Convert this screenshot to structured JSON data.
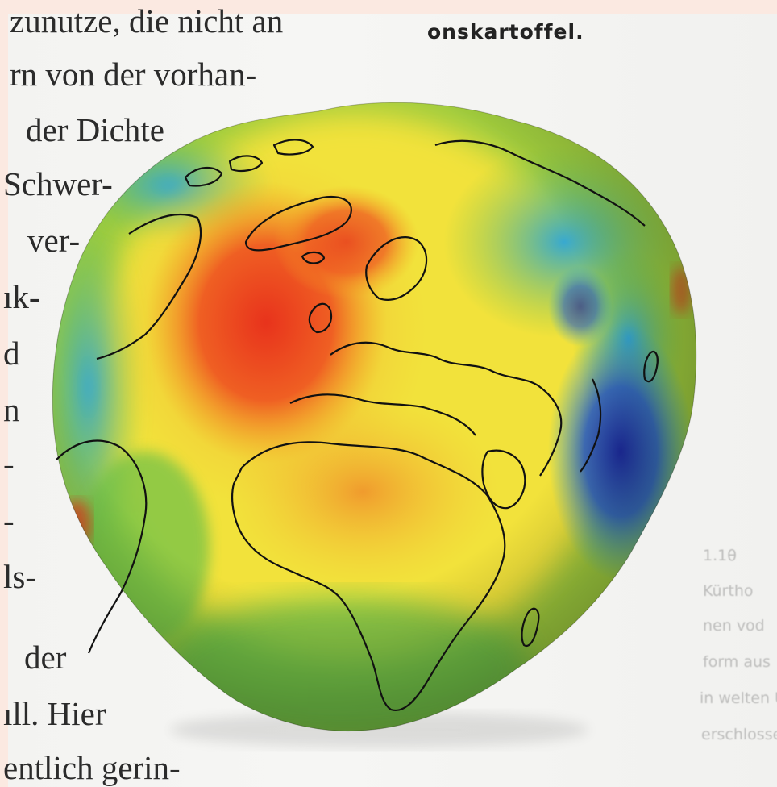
{
  "body_text": {
    "lines": [
      "zunutze, die nicht an",
      "rn von der vorhan-",
      "der Dichte",
      "Schwer-",
      "ver-",
      "ık-",
      "d",
      "n",
      "-",
      "-",
      "ls-",
      "der",
      "ıll. Hier",
      "entlich gerin-"
    ]
  },
  "caption": {
    "fragment": "onskartoffel."
  },
  "side_caption": {
    "lines": [
      "1.1θ",
      "Kürtho",
      "nen vod",
      "form aus",
      "in welten Unt",
      "erschlossen werden."
    ]
  },
  "figure": {
    "subject": "geoid-potato-globe",
    "colors": {
      "high": "#e8331c",
      "mid_high": "#f5a623",
      "mid": "#f2e23a",
      "mid_low": "#6cc04a",
      "low": "#2fa6d8",
      "very_low": "#1c2a9c"
    }
  }
}
